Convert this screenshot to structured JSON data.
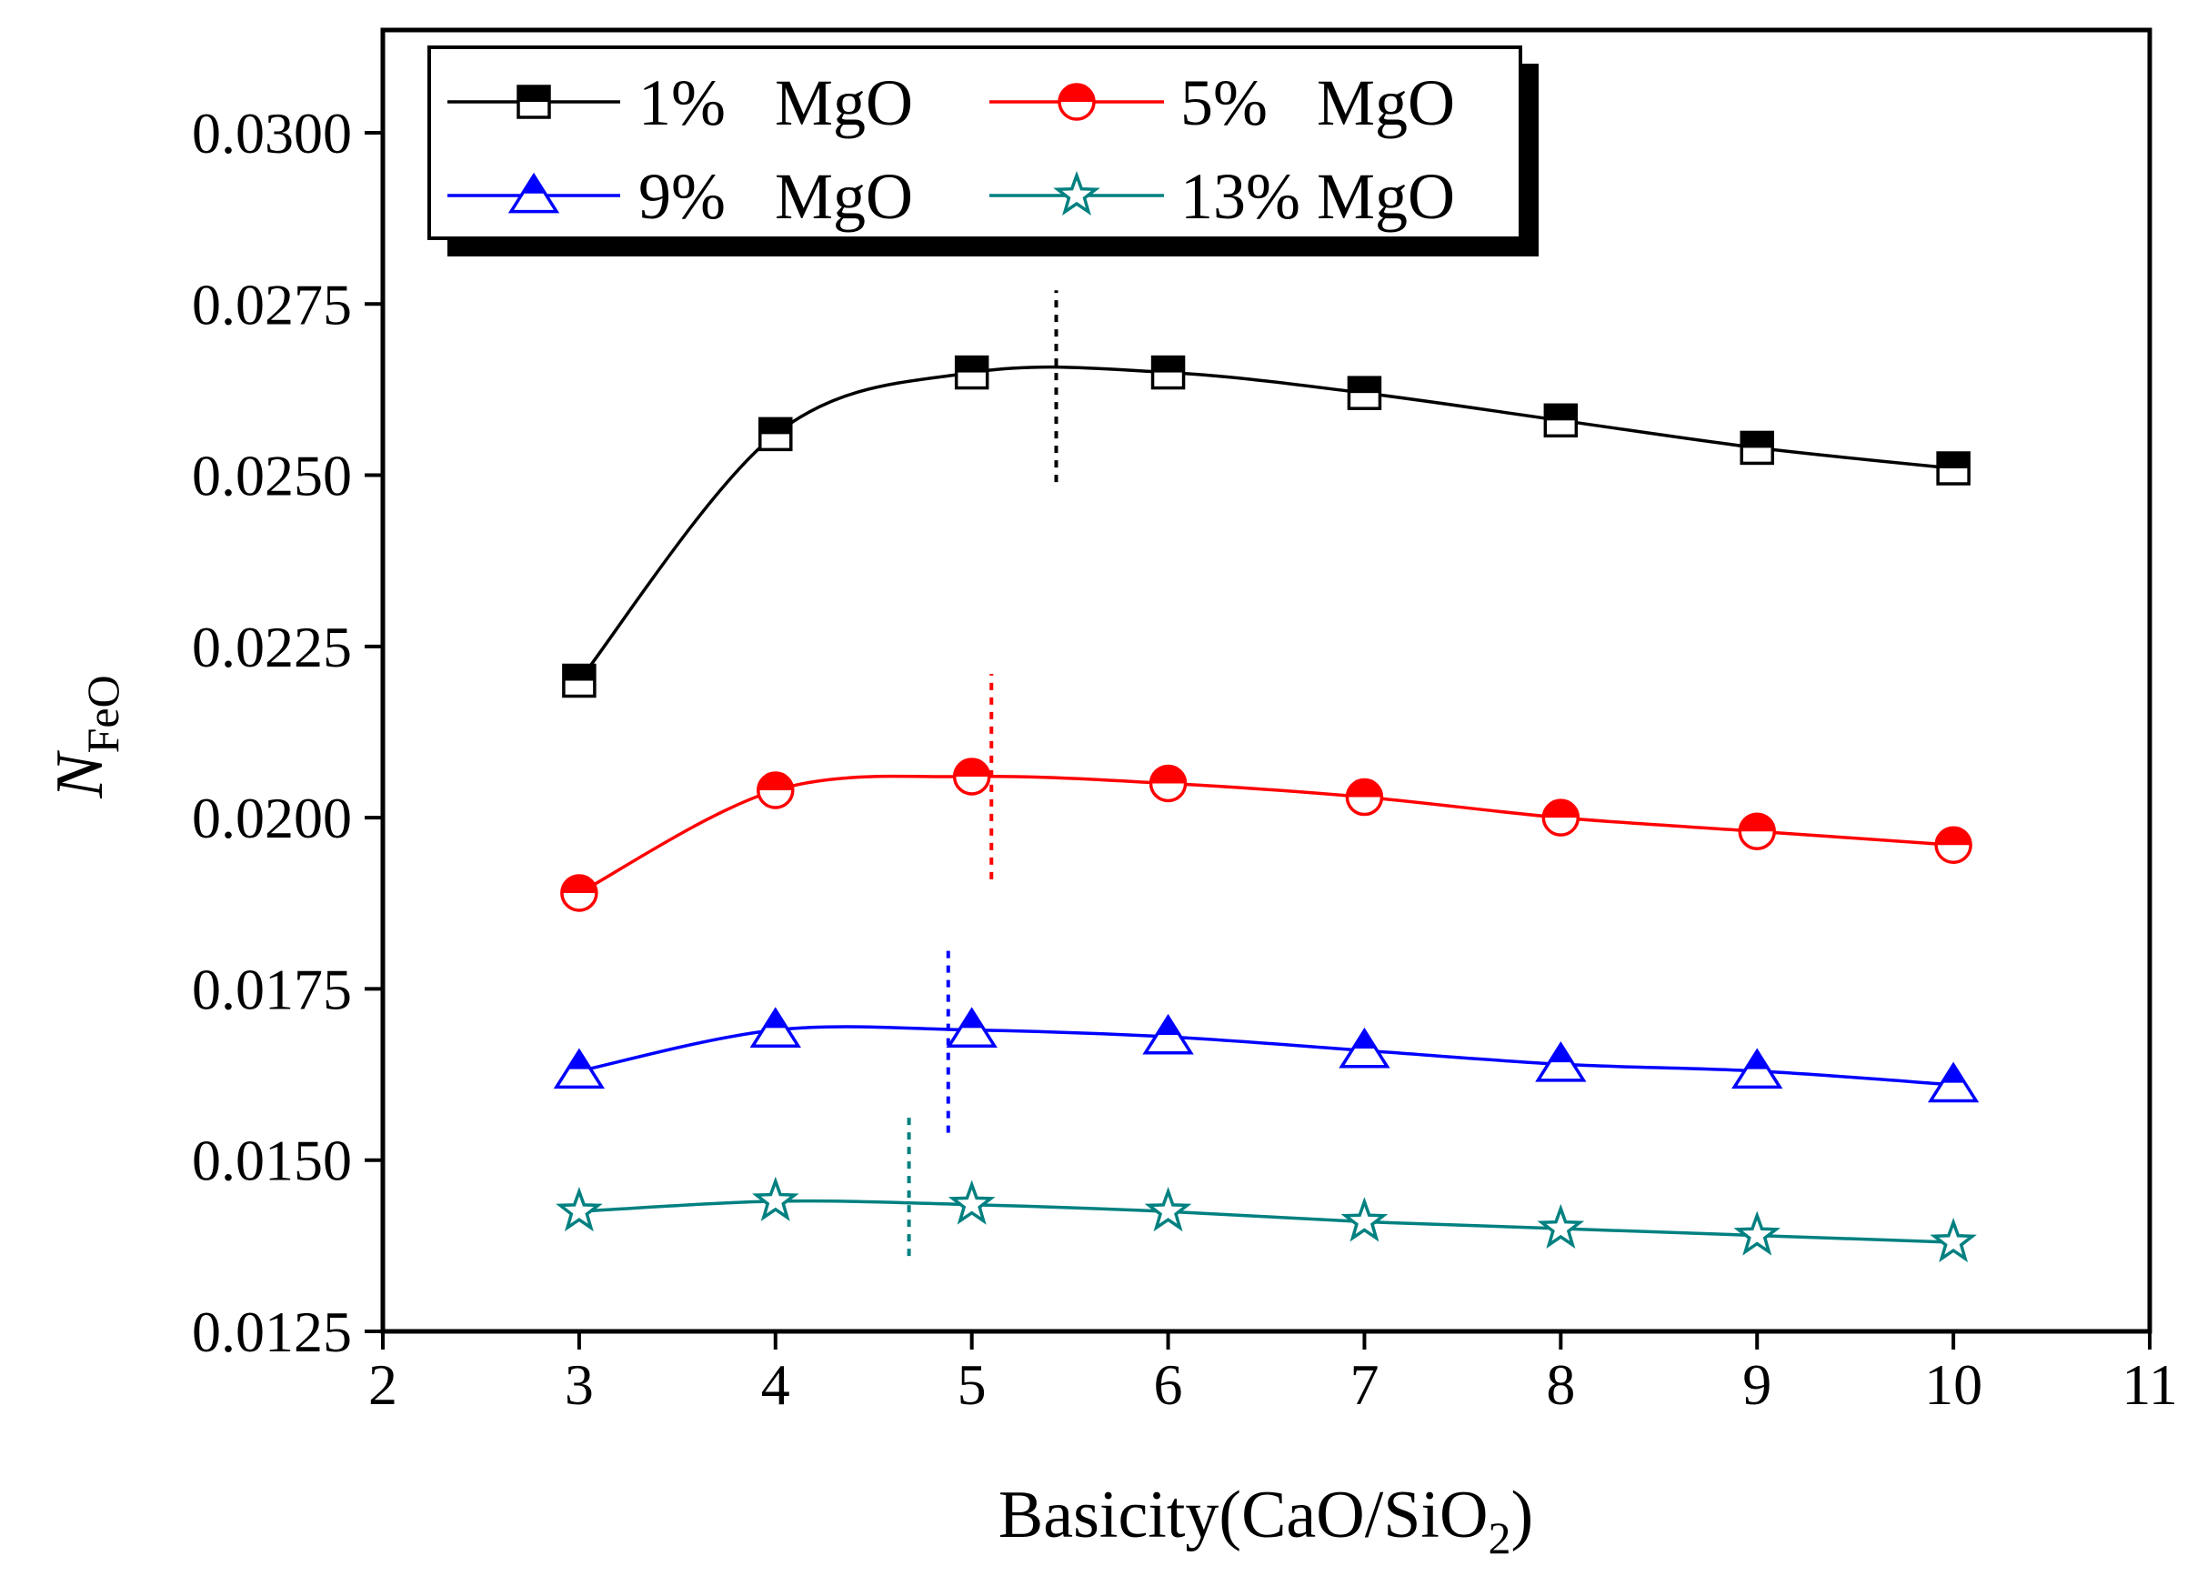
{
  "chart_data": {
    "type": "line",
    "title": "",
    "xlabel": "Basicity(CaO/SiO",
    "xlabel_sub": "2",
    "xlabel_end": ")",
    "ylabel": "N",
    "ylabel_sub": "FeO",
    "xlim": [
      2,
      11
    ],
    "ylim": [
      0.0125,
      0.0315
    ],
    "xticks": [
      2,
      3,
      4,
      5,
      6,
      7,
      8,
      9,
      10,
      11
    ],
    "xtick_labels": [
      "2",
      "3",
      "4",
      "5",
      "6",
      "7",
      "8",
      "9",
      "10",
      "11"
    ],
    "yticks": [
      0.0125,
      0.015,
      0.0175,
      0.02,
      0.0225,
      0.025,
      0.0275,
      0.03
    ],
    "ytick_labels": [
      "0.0125",
      "0.0150",
      "0.0175",
      "0.0200",
      "0.0225",
      "0.0250",
      "0.0275",
      "0.0300"
    ],
    "grid": false,
    "legend_position": "top-left",
    "x": [
      3,
      4,
      5,
      6,
      7,
      8,
      9,
      10
    ],
    "series": [
      {
        "name": "1%   MgO",
        "color": "#000000",
        "marker": "square",
        "values": [
          0.022,
          0.0256,
          0.0265,
          0.0265,
          0.0262,
          0.0258,
          0.0254,
          0.0251
        ],
        "peak_line": {
          "x": 5.43,
          "y_from": 0.0249,
          "y_to": 0.0277
        }
      },
      {
        "name": "5%   MgO",
        "color": "#ff0000",
        "marker": "circle",
        "values": [
          0.0189,
          0.0204,
          0.0206,
          0.0205,
          0.0203,
          0.02,
          0.0198,
          0.0196
        ],
        "peak_line": {
          "x": 5.1,
          "y_from": 0.0191,
          "y_to": 0.0221
        }
      },
      {
        "name": "9%   MgO",
        "color": "#0000ff",
        "marker": "triangle",
        "values": [
          0.0163,
          0.0169,
          0.0169,
          0.0168,
          0.0166,
          0.0164,
          0.0163,
          0.0161
        ],
        "peak_line": {
          "x": 4.88,
          "y_from": 0.0154,
          "y_to": 0.0181
        }
      },
      {
        "name": "13% MgO",
        "color": "#008080",
        "marker": "star",
        "values": [
          0.01425,
          0.0144,
          0.01435,
          0.01425,
          0.0141,
          0.014,
          0.0139,
          0.0138
        ],
        "peak_line": {
          "x": 4.68,
          "y_from": 0.0136,
          "y_to": 0.0157
        }
      }
    ]
  }
}
